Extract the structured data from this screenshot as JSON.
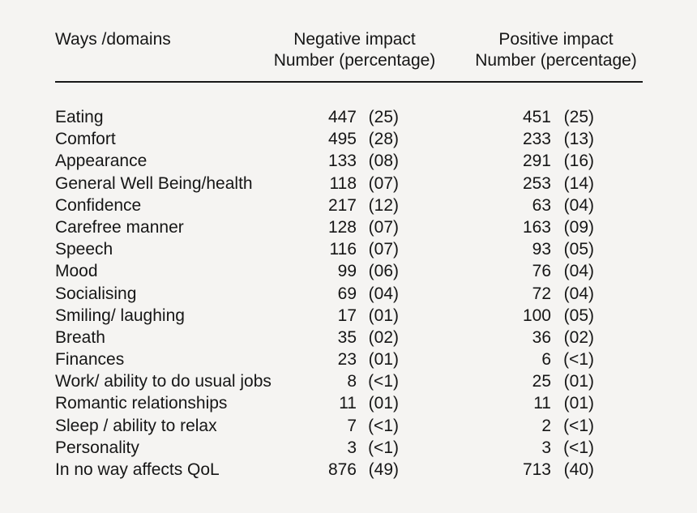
{
  "colors": {
    "background": "#f5f4f2",
    "text": "#161616",
    "rule": "#181818"
  },
  "table": {
    "header": {
      "domain": "Ways /domains",
      "negative_line1": "Negative impact",
      "negative_line2": "Number (percentage)",
      "positive_line1": "Positive impact",
      "positive_line2": "Number (percentage)"
    },
    "rows": [
      {
        "domain": "Eating",
        "neg_n": "447",
        "neg_p": "(25)",
        "pos_n": "451",
        "pos_p": "(25)"
      },
      {
        "domain": "Comfort",
        "neg_n": "495",
        "neg_p": "(28)",
        "pos_n": "233",
        "pos_p": "(13)"
      },
      {
        "domain": "Appearance",
        "neg_n": "133",
        "neg_p": "(08)",
        "pos_n": "291",
        "pos_p": "(16)"
      },
      {
        "domain": "General Well Being/health",
        "neg_n": "118",
        "neg_p": "(07)",
        "pos_n": "253",
        "pos_p": "(14)"
      },
      {
        "domain": "Confidence",
        "neg_n": "217",
        "neg_p": "(12)",
        "pos_n": "63",
        "pos_p": "(04)"
      },
      {
        "domain": "Carefree manner",
        "neg_n": "128",
        "neg_p": "(07)",
        "pos_n": "163",
        "pos_p": "(09)"
      },
      {
        "domain": "Speech",
        "neg_n": "116",
        "neg_p": "(07)",
        "pos_n": "93",
        "pos_p": "(05)"
      },
      {
        "domain": "Mood",
        "neg_n": "99",
        "neg_p": "(06)",
        "pos_n": "76",
        "pos_p": "(04)"
      },
      {
        "domain": "Socialising",
        "neg_n": "69",
        "neg_p": "(04)",
        "pos_n": "72",
        "pos_p": "(04)"
      },
      {
        "domain": "Smiling/ laughing",
        "neg_n": "17",
        "neg_p": "(01)",
        "pos_n": "100",
        "pos_p": "(05)"
      },
      {
        "domain": "Breath",
        "neg_n": "35",
        "neg_p": "(02)",
        "pos_n": "36",
        "pos_p": "(02)"
      },
      {
        "domain": "Finances",
        "neg_n": "23",
        "neg_p": "(01)",
        "pos_n": "6",
        "pos_p": "(<1)"
      },
      {
        "domain": "Work/ ability to do usual jobs",
        "neg_n": "8",
        "neg_p": "(<1)",
        "pos_n": "25",
        "pos_p": "(01)"
      },
      {
        "domain": "Romantic relationships",
        "neg_n": "11",
        "neg_p": "(01)",
        "pos_n": "11",
        "pos_p": "(01)"
      },
      {
        "domain": "Sleep / ability to relax",
        "neg_n": "7",
        "neg_p": "(<1)",
        "pos_n": "2",
        "pos_p": "(<1)"
      },
      {
        "domain": "Personality",
        "neg_n": "3",
        "neg_p": "(<1)",
        "pos_n": "3",
        "pos_p": "(<1)"
      },
      {
        "domain": "In no way affects QoL",
        "neg_n": "876",
        "neg_p": "(49)",
        "pos_n": "713",
        "pos_p": "(40)"
      }
    ]
  }
}
